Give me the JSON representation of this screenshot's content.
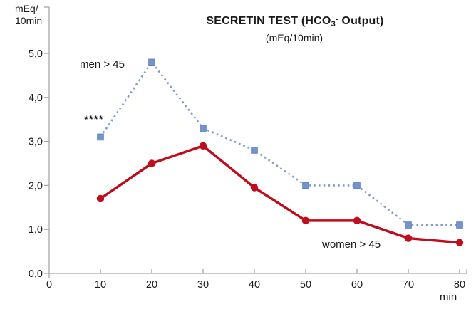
{
  "chart_data": {
    "type": "line",
    "title": "SECRETIN TEST (HCO3- Output)",
    "title_parts": {
      "prefix": "SECRETIN TEST (HCO",
      "sub": "3",
      "sup": "-",
      "suffix": " Output)"
    },
    "subtitle": "(mEq/10min)",
    "ylabel": "mEq/10min",
    "ylabel_lines": [
      "mEq/",
      "10min"
    ],
    "xlabel": "min",
    "x": [
      10,
      20,
      30,
      40,
      50,
      60,
      70,
      80
    ],
    "series": [
      {
        "name": "men > 45",
        "values": [
          3.1,
          4.8,
          3.3,
          2.8,
          2.0,
          2.0,
          1.1,
          1.1
        ],
        "line_style": "dotted",
        "line_color": "#7f9bd1",
        "marker": "square",
        "marker_fill": "#7494cd",
        "marker_stroke": "#6080be"
      },
      {
        "name": "women > 45",
        "values": [
          1.7,
          2.5,
          2.9,
          1.95,
          1.2,
          1.2,
          0.8,
          0.7
        ],
        "line_style": "solid",
        "line_color": "#c00d1d",
        "marker": "circle",
        "marker_fill": "#c00d1d",
        "marker_stroke": "#c00d1d"
      }
    ],
    "x_ticks": [
      0,
      10,
      20,
      30,
      40,
      50,
      60,
      70,
      80
    ],
    "x_tick_labels": [
      "0",
      "10",
      "20",
      "30",
      "40",
      "50",
      "60",
      "70",
      "80"
    ],
    "y_ticks": [
      0,
      1,
      2,
      3,
      4,
      5
    ],
    "y_tick_labels": [
      "0,0",
      "1,0",
      "2,0",
      "3,0",
      "4,0",
      "5,0"
    ],
    "xlim": [
      0,
      81.5
    ],
    "ylim": [
      0,
      6.05
    ],
    "grid": false,
    "legend": "inline-labels",
    "annotation": {
      "text": "****",
      "x": 10,
      "y": 3.45
    },
    "axis_color": "#a6a6a6",
    "text_color": "#1a1a1a"
  }
}
